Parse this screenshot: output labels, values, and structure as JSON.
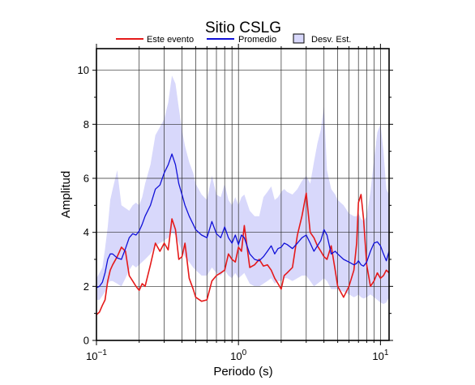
{
  "chart_data": {
    "type": "line",
    "title": "Sitio CSLG",
    "xlabel": "Periodo (s)",
    "ylabel": "Amplitud",
    "x_scale": "log",
    "xlim": [
      0.1,
      11.5
    ],
    "ylim": [
      0,
      10.8
    ],
    "grid": true,
    "legend_position": "top",
    "x_tick_labels": [
      {
        "value": 0.1,
        "base": "10",
        "exp": "−1"
      },
      {
        "value": 1,
        "base": "10",
        "exp": "0"
      },
      {
        "value": 10,
        "base": "10",
        "exp": "1"
      }
    ],
    "y_ticks": [
      0,
      2,
      4,
      6,
      8,
      10
    ],
    "y_tick_labels": [
      "0",
      "2",
      "4",
      "6",
      "8",
      "10"
    ],
    "legend": {
      "event_label": "Este evento",
      "mean_label": "Promedio",
      "std_label": "Desv. Est."
    },
    "colors": {
      "event": "#e51a1a",
      "mean": "#1010d8",
      "std_band": "#d8d8fb",
      "grid": "#2a2a2a"
    },
    "series": [
      {
        "name": "Este evento",
        "color": "#e51a1a",
        "x": [
          0.1,
          0.105,
          0.11,
          0.115,
          0.12,
          0.125,
          0.13,
          0.14,
          0.15,
          0.16,
          0.17,
          0.18,
          0.19,
          0.2,
          0.21,
          0.22,
          0.24,
          0.26,
          0.28,
          0.3,
          0.32,
          0.34,
          0.36,
          0.38,
          0.4,
          0.42,
          0.45,
          0.48,
          0.5,
          0.55,
          0.6,
          0.65,
          0.7,
          0.75,
          0.8,
          0.85,
          0.9,
          0.95,
          1.0,
          1.05,
          1.1,
          1.2,
          1.3,
          1.4,
          1.5,
          1.6,
          1.7,
          1.8,
          1.9,
          2.0,
          2.1,
          2.2,
          2.4,
          2.6,
          2.8,
          3.0,
          3.2,
          3.4,
          3.6,
          3.8,
          4.0,
          4.2,
          4.5,
          4.8,
          5.0,
          5.5,
          6.0,
          6.5,
          6.8,
          7.0,
          7.3,
          7.6,
          8.0,
          8.5,
          9.0,
          9.5,
          10.0,
          10.5,
          11.0,
          11.5
        ],
        "values": [
          0.95,
          1.05,
          1.3,
          1.5,
          2.2,
          2.6,
          2.8,
          3.1,
          3.45,
          3.3,
          2.4,
          2.2,
          2.0,
          1.85,
          2.1,
          2.0,
          2.8,
          3.6,
          3.3,
          3.6,
          3.35,
          4.5,
          4.1,
          3.0,
          3.1,
          3.6,
          2.3,
          1.9,
          1.6,
          1.45,
          1.5,
          2.2,
          2.4,
          2.5,
          2.6,
          3.2,
          3.0,
          2.9,
          3.45,
          3.3,
          4.25,
          2.7,
          2.8,
          3.0,
          2.75,
          2.8,
          2.6,
          2.3,
          2.1,
          1.9,
          2.4,
          2.5,
          2.7,
          3.9,
          4.6,
          5.45,
          4.0,
          3.8,
          3.5,
          3.3,
          3.1,
          3.0,
          3.5,
          2.6,
          2.0,
          1.6,
          2.0,
          2.6,
          3.6,
          5.1,
          5.4,
          4.5,
          2.8,
          2.0,
          2.2,
          2.5,
          2.3,
          2.4,
          2.6,
          2.5
        ]
      },
      {
        "name": "Promedio",
        "color": "#1010d8",
        "x": [
          0.1,
          0.105,
          0.11,
          0.115,
          0.12,
          0.125,
          0.13,
          0.14,
          0.15,
          0.16,
          0.17,
          0.18,
          0.19,
          0.2,
          0.21,
          0.22,
          0.24,
          0.26,
          0.28,
          0.3,
          0.32,
          0.34,
          0.36,
          0.38,
          0.4,
          0.42,
          0.45,
          0.48,
          0.5,
          0.55,
          0.6,
          0.65,
          0.7,
          0.75,
          0.8,
          0.85,
          0.9,
          0.95,
          1.0,
          1.05,
          1.1,
          1.2,
          1.3,
          1.4,
          1.5,
          1.6,
          1.7,
          1.8,
          1.9,
          2.0,
          2.1,
          2.2,
          2.4,
          2.6,
          2.8,
          3.0,
          3.2,
          3.4,
          3.6,
          3.8,
          4.0,
          4.2,
          4.5,
          4.8,
          5.0,
          5.5,
          6.0,
          6.5,
          6.8,
          7.0,
          7.3,
          7.6,
          8.0,
          8.5,
          9.0,
          9.5,
          10.0,
          10.5,
          11.0,
          11.5
        ],
        "values": [
          1.95,
          2.0,
          2.15,
          2.5,
          3.0,
          3.2,
          3.2,
          3.05,
          3.0,
          3.4,
          3.8,
          3.95,
          3.9,
          4.05,
          4.3,
          4.6,
          5.0,
          5.6,
          5.75,
          6.2,
          6.5,
          6.9,
          6.5,
          5.8,
          5.4,
          5.0,
          4.6,
          4.3,
          4.1,
          3.9,
          3.8,
          4.4,
          3.95,
          3.8,
          4.2,
          3.8,
          3.6,
          3.9,
          3.55,
          3.9,
          3.8,
          3.2,
          3.0,
          2.95,
          3.1,
          3.3,
          3.5,
          3.2,
          3.4,
          3.45,
          3.6,
          3.55,
          3.4,
          3.6,
          3.8,
          3.9,
          3.6,
          3.3,
          3.5,
          3.7,
          4.1,
          3.9,
          3.2,
          3.3,
          3.2,
          3.0,
          2.9,
          2.8,
          2.85,
          2.95,
          2.8,
          2.75,
          2.9,
          3.3,
          3.6,
          3.65,
          3.5,
          3.2,
          2.95,
          3.3
        ]
      }
    ],
    "std_band": {
      "name": "Desv. Est.",
      "x": [
        0.1,
        0.105,
        0.11,
        0.115,
        0.12,
        0.125,
        0.13,
        0.14,
        0.15,
        0.16,
        0.17,
        0.18,
        0.19,
        0.2,
        0.21,
        0.22,
        0.24,
        0.26,
        0.28,
        0.3,
        0.32,
        0.34,
        0.36,
        0.38,
        0.4,
        0.42,
        0.45,
        0.48,
        0.5,
        0.55,
        0.6,
        0.65,
        0.7,
        0.75,
        0.8,
        0.85,
        0.9,
        0.95,
        1.0,
        1.05,
        1.1,
        1.2,
        1.3,
        1.4,
        1.5,
        1.6,
        1.7,
        1.8,
        1.9,
        2.0,
        2.1,
        2.2,
        2.4,
        2.6,
        2.8,
        3.0,
        3.2,
        3.4,
        3.6,
        3.8,
        4.0,
        4.2,
        4.5,
        4.8,
        5.0,
        5.5,
        6.0,
        6.5,
        6.8,
        7.0,
        7.3,
        7.6,
        8.0,
        8.5,
        9.0,
        9.5,
        10.0,
        10.5,
        11.0,
        11.5
      ],
      "lower": [
        1.5,
        1.5,
        1.65,
        1.8,
        2.1,
        2.2,
        2.2,
        2.1,
        2.0,
        2.3,
        2.6,
        2.8,
        2.7,
        2.8,
        2.9,
        3.0,
        3.2,
        3.5,
        3.6,
        3.7,
        3.8,
        4.0,
        3.9,
        3.6,
        3.3,
        3.1,
        2.9,
        2.7,
        2.6,
        2.4,
        2.4,
        2.7,
        2.5,
        2.4,
        2.6,
        2.4,
        2.3,
        2.5,
        2.3,
        2.4,
        2.5,
        2.1,
        2.0,
        2.0,
        2.1,
        2.2,
        2.3,
        2.1,
        2.2,
        2.2,
        2.3,
        2.3,
        2.2,
        2.3,
        2.4,
        2.4,
        2.2,
        2.0,
        2.1,
        2.2,
        2.3,
        2.2,
        1.9,
        1.9,
        1.9,
        1.8,
        1.7,
        1.6,
        1.65,
        1.7,
        1.6,
        1.55,
        1.6,
        1.7,
        1.6,
        1.5,
        1.4,
        1.35,
        1.4,
        1.6
      ],
      "upper": [
        2.3,
        2.5,
        2.7,
        3.4,
        4.2,
        5.2,
        5.6,
        6.3,
        5.0,
        4.9,
        4.8,
        5.0,
        5.1,
        5.0,
        5.3,
        5.8,
        6.5,
        7.6,
        7.9,
        8.2,
        8.8,
        9.8,
        9.5,
        8.6,
        7.8,
        7.2,
        6.6,
        6.2,
        5.8,
        5.4,
        5.2,
        6.1,
        5.4,
        5.3,
        5.8,
        5.2,
        5.0,
        5.3,
        5.0,
        5.3,
        5.4,
        4.8,
        4.6,
        4.6,
        5.3,
        5.5,
        5.7,
        5.2,
        5.3,
        5.5,
        5.6,
        5.5,
        5.4,
        5.6,
        5.9,
        6.1,
        5.8,
        6.6,
        7.3,
        7.8,
        8.7,
        6.3,
        5.6,
        5.4,
        5.2,
        5.0,
        4.7,
        4.6,
        4.6,
        4.7,
        4.5,
        4.4,
        4.6,
        5.5,
        6.7,
        7.7,
        8.0,
        7.0,
        5.6,
        5.4
      ]
    }
  }
}
